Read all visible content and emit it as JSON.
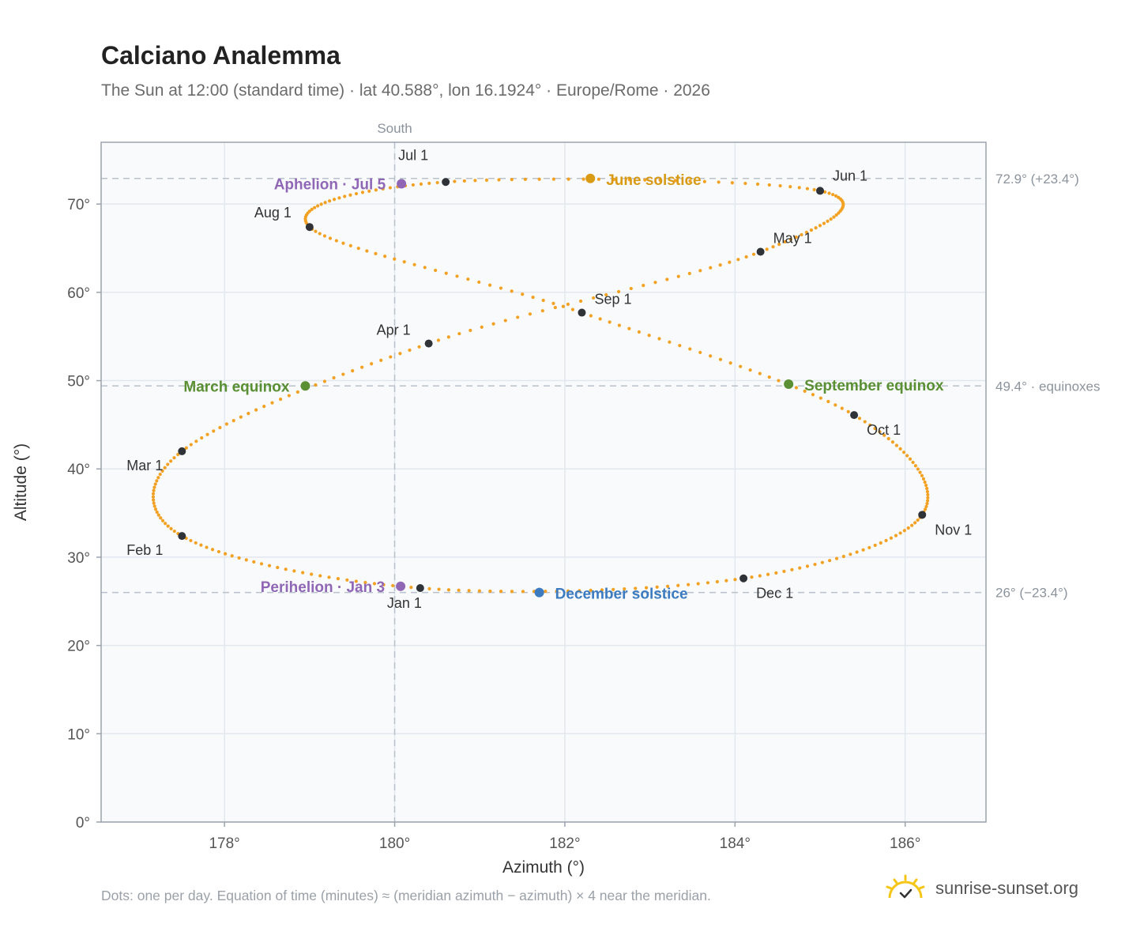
{
  "title": "Calciano Analemma",
  "subtitle": "The Sun at 12:00 (standard time) · lat 40.588°, lon 16.1924° · Europe/Rome · 2026",
  "footnote": "Dots: one per day. Equation of time (minutes) ≈ (meridian azimuth − azimuth) × 4 near the meridian.",
  "brand": {
    "name": "sunrise-sunset.org",
    "icon": "sun-logo-icon"
  },
  "colors": {
    "curve": "#f2a122",
    "month_marker": "#2f3338",
    "aphelion": "#8f67b5",
    "perihelion": "#8f67b5",
    "june_solstice": "#d99a14",
    "december_solstice": "#3c7bc0",
    "equinox": "#5a8f33",
    "plot_bg": "#f8fafc",
    "grid": "#e3e8ee",
    "axis": "#9ba3ae",
    "reference_line": "#b8c1cc"
  },
  "chart_data": {
    "type": "scatter",
    "xlabel": "Azimuth (°)",
    "ylabel": "Altitude (°)",
    "xlim": [
      176.55,
      186.95
    ],
    "ylim": [
      0,
      77
    ],
    "grid": true,
    "x_ticks": [
      178,
      180,
      182,
      184,
      186
    ],
    "x_tick_labels": [
      "178°",
      "180°",
      "182°",
      "184°",
      "186°"
    ],
    "y_ticks": [
      0,
      10,
      20,
      30,
      40,
      50,
      60,
      70
    ],
    "y_tick_labels": [
      "0°",
      "10°",
      "20°",
      "30°",
      "40°",
      "50°",
      "60°",
      "70°"
    ],
    "south_line": {
      "x": 180,
      "label": "South"
    },
    "reference_lines": [
      {
        "y": 72.9,
        "label": "72.9° (+23.4°)"
      },
      {
        "y": 49.4,
        "label": "49.4° · equinoxes"
      },
      {
        "y": 26,
        "label": "26° (−23.4°)"
      }
    ],
    "month_markers": [
      {
        "label": "Jan 1",
        "x": 180.3,
        "y": 26.5
      },
      {
        "label": "Feb 1",
        "x": 177.5,
        "y": 32.4
      },
      {
        "label": "Mar 1",
        "x": 177.5,
        "y": 42.0
      },
      {
        "label": "Apr 1",
        "x": 180.4,
        "y": 54.2
      },
      {
        "label": "May 1",
        "x": 184.3,
        "y": 64.6
      },
      {
        "label": "Jun 1",
        "x": 185.0,
        "y": 71.5
      },
      {
        "label": "Jul 1",
        "x": 180.6,
        "y": 72.5
      },
      {
        "label": "Aug 1",
        "x": 179.0,
        "y": 67.4
      },
      {
        "label": "Sep 1",
        "x": 182.2,
        "y": 57.7
      },
      {
        "label": "Oct 1",
        "x": 185.4,
        "y": 46.1
      },
      {
        "label": "Nov 1",
        "x": 186.2,
        "y": 34.8
      },
      {
        "label": "Dec 1",
        "x": 184.1,
        "y": 27.6
      }
    ],
    "events": [
      {
        "label": "Perihelion · Jan 3",
        "x": 180.07,
        "y": 26.7,
        "color_key": "perihelion"
      },
      {
        "label": "March equinox",
        "x": 178.95,
        "y": 49.4,
        "color_key": "equinox"
      },
      {
        "label": "June solstice",
        "x": 182.3,
        "y": 72.9,
        "color_key": "june_solstice"
      },
      {
        "label": "Aphelion · Jul 5",
        "x": 180.08,
        "y": 72.3,
        "color_key": "aphelion"
      },
      {
        "label": "September equinox",
        "x": 184.63,
        "y": 49.6,
        "color_key": "equinox"
      },
      {
        "label": "December solstice",
        "x": 181.7,
        "y": 26.0,
        "color_key": "december_solstice"
      }
    ]
  }
}
